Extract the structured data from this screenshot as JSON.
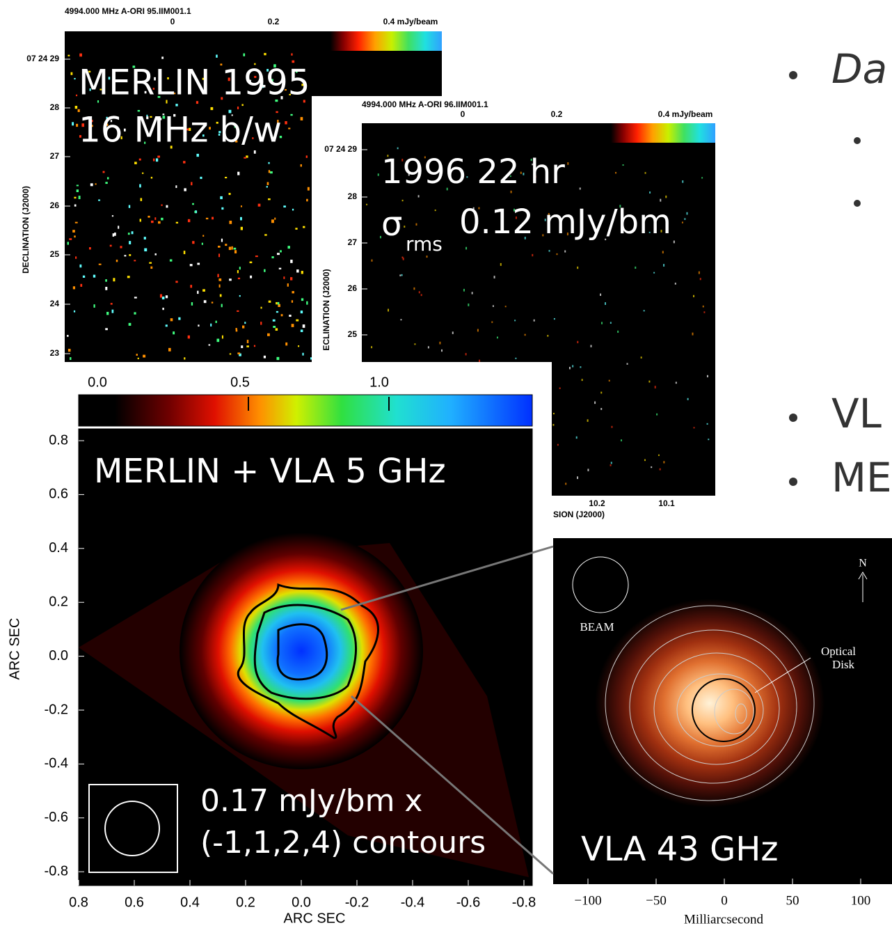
{
  "panels": [
    {
      "header": "4994.000 MHz  A-ORI 95.IIM001.1",
      "colorbar_labels": [
        "0",
        "0.2",
        "0.4 mJy/beam"
      ],
      "y_ticks": [
        "07 24 29",
        "28",
        "27",
        "26",
        "25",
        "24",
        "23"
      ],
      "y_label": "DECLINATION (J2000)",
      "overlay": [
        "MERLIN 1995",
        "16 MHz b/w"
      ]
    },
    {
      "header": "4994.000 MHz  A-ORI 96.IIM001.1",
      "colorbar_labels": [
        "0",
        "0.2",
        "0.4 mJy/beam"
      ],
      "y_ticks": [
        "07 24 29",
        "28",
        "27",
        "26",
        "25"
      ],
      "y_label": "ECLINATION (J2000)",
      "x_ticks": [
        "10.2",
        "10.1"
      ],
      "x_label": "SION (J2000)",
      "overlay": [
        "1996 22 hr",
        "σ",
        "rms",
        "0.12 mJy/bm"
      ]
    },
    {
      "colorbar_labels": [
        "0.0",
        "0.5",
        "1.0"
      ],
      "y_ticks": [
        "0.8",
        "0.6",
        "0.4",
        "0.2",
        "0.0",
        "-0.2",
        "-0.4",
        "-0.6",
        "-0.8"
      ],
      "y_label": "ARC SEC",
      "x_ticks": [
        "0.8",
        "0.6",
        "0.4",
        "0.2",
        "0.0",
        "-0.2",
        "-0.4",
        "-0.6",
        "-0.8"
      ],
      "x_label": "ARC SEC",
      "overlay": [
        "MERLIN + VLA 5 GHz",
        "0.17 mJy/bm x",
        "(-1,1,2,4) contours"
      ]
    },
    {
      "beam_label": "BEAM",
      "annotation": [
        "Optical",
        "Disk"
      ],
      "north": "N",
      "x_ticks": [
        "−100",
        "−50",
        "0",
        "50",
        "100"
      ],
      "x_label": "Milliarcsecond",
      "overlay": [
        "VLA 43 GHz"
      ]
    }
  ],
  "bullets": [
    "Da",
    "",
    "",
    "VL",
    "ME"
  ]
}
